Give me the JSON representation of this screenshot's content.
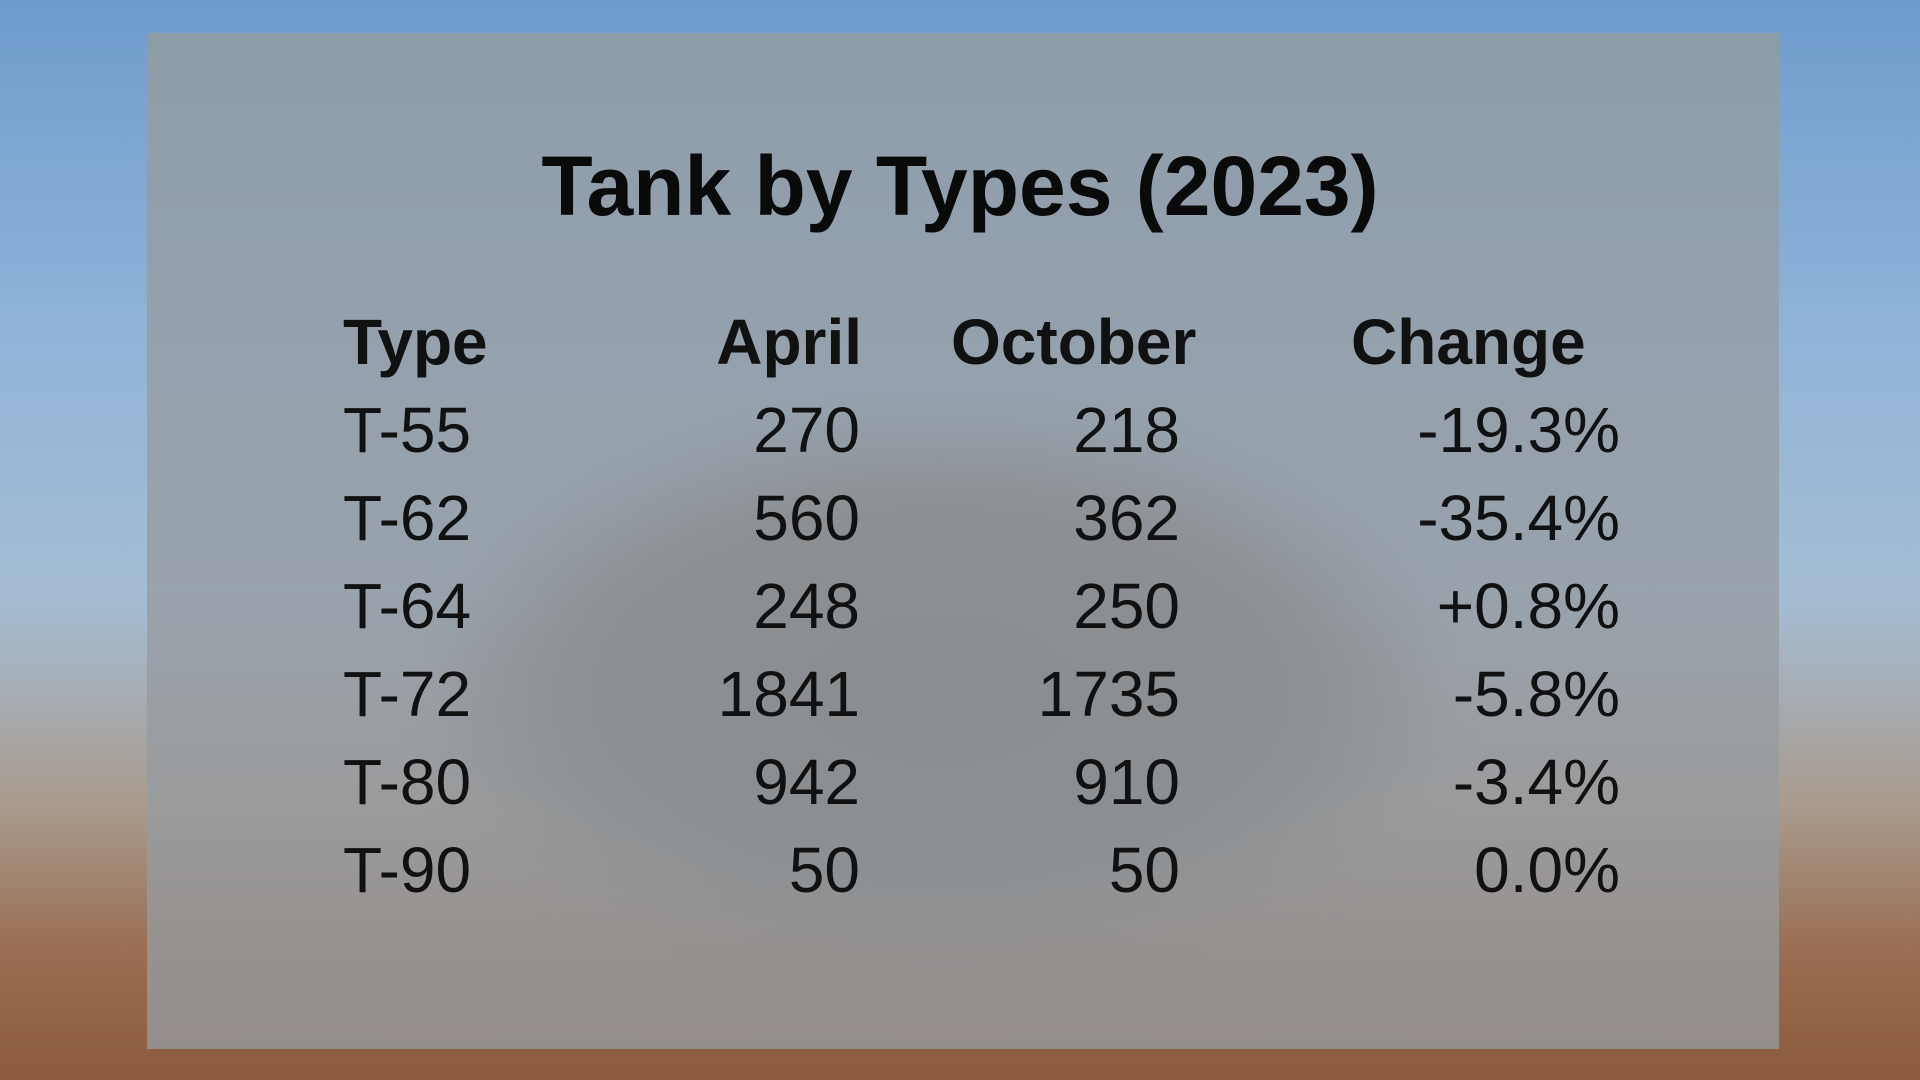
{
  "chart_data": {
    "type": "table",
    "title": "Tank by Types (2023)",
    "columns": [
      "Type",
      "April",
      "October",
      "Change"
    ],
    "rows": [
      [
        "T-55",
        "270",
        "218",
        "-19.3%"
      ],
      [
        "T-62",
        "560",
        "362",
        "-35.4%"
      ],
      [
        "T-64",
        "248",
        "250",
        "+0.8%"
      ],
      [
        "T-72",
        "1841",
        "1735",
        "-5.8%"
      ],
      [
        "T-80",
        "942",
        "910",
        "-3.4%"
      ],
      [
        "T-90",
        "50",
        "50",
        "0.0%"
      ]
    ]
  }
}
